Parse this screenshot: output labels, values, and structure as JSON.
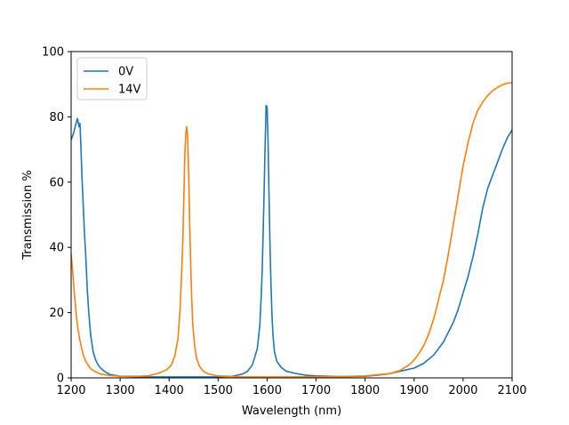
{
  "chart_data": {
    "type": "line",
    "xlabel": "Wavelength (nm)",
    "ylabel": "Transmission %",
    "xlim": [
      1200,
      2100
    ],
    "ylim": [
      0,
      100
    ],
    "xticks": [
      1200,
      1300,
      1400,
      1500,
      1600,
      1700,
      1800,
      1900,
      2000,
      2100
    ],
    "yticks": [
      0,
      20,
      40,
      60,
      80,
      100
    ],
    "grid": false,
    "legend_position": "top-left",
    "series": [
      {
        "name": "0V",
        "color": "#1f77b4",
        "points": [
          [
            1200,
            73
          ],
          [
            1205,
            75
          ],
          [
            1210,
            78
          ],
          [
            1213,
            79.5
          ],
          [
            1216,
            77
          ],
          [
            1218,
            78
          ],
          [
            1220,
            71
          ],
          [
            1222,
            62
          ],
          [
            1225,
            52
          ],
          [
            1227,
            45
          ],
          [
            1230,
            37
          ],
          [
            1233,
            27
          ],
          [
            1236,
            20
          ],
          [
            1240,
            13
          ],
          [
            1245,
            8
          ],
          [
            1250,
            5.5
          ],
          [
            1255,
            4
          ],
          [
            1260,
            3
          ],
          [
            1270,
            1.8
          ],
          [
            1280,
            1
          ],
          [
            1300,
            0.5
          ],
          [
            1350,
            0.3
          ],
          [
            1400,
            0.3
          ],
          [
            1450,
            0.3
          ],
          [
            1500,
            0.3
          ],
          [
            1530,
            0.5
          ],
          [
            1550,
            1.2
          ],
          [
            1560,
            2
          ],
          [
            1570,
            4
          ],
          [
            1580,
            9
          ],
          [
            1585,
            16
          ],
          [
            1588,
            25
          ],
          [
            1590,
            33
          ],
          [
            1592,
            45
          ],
          [
            1594,
            58
          ],
          [
            1596,
            72
          ],
          [
            1598,
            83.5
          ],
          [
            1600,
            83
          ],
          [
            1602,
            72
          ],
          [
            1604,
            55
          ],
          [
            1606,
            40
          ],
          [
            1608,
            28
          ],
          [
            1610,
            19
          ],
          [
            1612,
            13
          ],
          [
            1615,
            8
          ],
          [
            1620,
            5
          ],
          [
            1630,
            3
          ],
          [
            1640,
            2
          ],
          [
            1660,
            1.3
          ],
          [
            1680,
            0.8
          ],
          [
            1700,
            0.6
          ],
          [
            1750,
            0.4
          ],
          [
            1800,
            0.5
          ],
          [
            1830,
            0.9
          ],
          [
            1850,
            1.3
          ],
          [
            1870,
            2
          ],
          [
            1900,
            3
          ],
          [
            1920,
            4.5
          ],
          [
            1940,
            7
          ],
          [
            1960,
            11
          ],
          [
            1980,
            17
          ],
          [
            1990,
            21
          ],
          [
            2000,
            26
          ],
          [
            2010,
            31
          ],
          [
            2020,
            37
          ],
          [
            2030,
            44
          ],
          [
            2040,
            52
          ],
          [
            2050,
            58
          ],
          [
            2060,
            62
          ],
          [
            2070,
            66
          ],
          [
            2080,
            70
          ],
          [
            2090,
            73.5
          ],
          [
            2100,
            76
          ]
        ]
      },
      {
        "name": "14V",
        "color": "#ff7f0e",
        "points": [
          [
            1200,
            38
          ],
          [
            1203,
            33
          ],
          [
            1206,
            27
          ],
          [
            1209,
            22
          ],
          [
            1212,
            17
          ],
          [
            1216,
            13
          ],
          [
            1220,
            10
          ],
          [
            1225,
            7
          ],
          [
            1230,
            5
          ],
          [
            1235,
            3.8
          ],
          [
            1240,
            2.8
          ],
          [
            1250,
            1.8
          ],
          [
            1260,
            1.2
          ],
          [
            1280,
            0.7
          ],
          [
            1300,
            0.5
          ],
          [
            1340,
            0.5
          ],
          [
            1360,
            0.7
          ],
          [
            1380,
            1.5
          ],
          [
            1395,
            2.5
          ],
          [
            1405,
            4
          ],
          [
            1412,
            7
          ],
          [
            1418,
            12
          ],
          [
            1422,
            20
          ],
          [
            1425,
            30
          ],
          [
            1428,
            42
          ],
          [
            1430,
            55
          ],
          [
            1432,
            68
          ],
          [
            1434,
            75
          ],
          [
            1436,
            77
          ],
          [
            1438,
            73
          ],
          [
            1440,
            62
          ],
          [
            1442,
            47
          ],
          [
            1444,
            35
          ],
          [
            1446,
            25
          ],
          [
            1448,
            17
          ],
          [
            1452,
            10
          ],
          [
            1456,
            6
          ],
          [
            1462,
            3.5
          ],
          [
            1470,
            2
          ],
          [
            1480,
            1.2
          ],
          [
            1500,
            0.6
          ],
          [
            1550,
            0.3
          ],
          [
            1650,
            0.3
          ],
          [
            1750,
            0.4
          ],
          [
            1800,
            0.6
          ],
          [
            1850,
            1.3
          ],
          [
            1870,
            2.2
          ],
          [
            1890,
            4
          ],
          [
            1900,
            5.5
          ],
          [
            1910,
            7.5
          ],
          [
            1920,
            10
          ],
          [
            1930,
            13.5
          ],
          [
            1940,
            18
          ],
          [
            1950,
            24
          ],
          [
            1960,
            30
          ],
          [
            1970,
            38
          ],
          [
            1980,
            47
          ],
          [
            1990,
            56
          ],
          [
            2000,
            65
          ],
          [
            2010,
            72
          ],
          [
            2020,
            78
          ],
          [
            2030,
            82
          ],
          [
            2040,
            84.5
          ],
          [
            2050,
            86.5
          ],
          [
            2060,
            88
          ],
          [
            2070,
            89
          ],
          [
            2080,
            89.8
          ],
          [
            2090,
            90.3
          ],
          [
            2100,
            90.5
          ]
        ]
      }
    ]
  }
}
